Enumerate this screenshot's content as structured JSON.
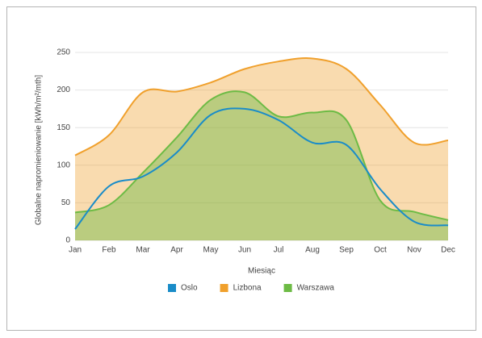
{
  "chart_data": {
    "type": "area",
    "x_label": "Miesiąc",
    "y_label": "Globalne napromieniowanie [kWh/m²/mth]",
    "categories": [
      "Jan",
      "Feb",
      "Mar",
      "Apr",
      "May",
      "Jun",
      "Jul",
      "Aug",
      "Sep",
      "Oct",
      "Nov",
      "Dec"
    ],
    "series": [
      {
        "name": "Oslo",
        "color": "#1a8cc8",
        "values": [
          15,
          72,
          85,
          117,
          167,
          175,
          160,
          130,
          127,
          68,
          25,
          20
        ]
      },
      {
        "name": "Lizbona",
        "color": "#f0a02c",
        "values": [
          113,
          140,
          197,
          198,
          210,
          228,
          238,
          242,
          228,
          180,
          130,
          133
        ]
      },
      {
        "name": "Warszawa",
        "color": "#6dbb45",
        "values": [
          37,
          47,
          90,
          137,
          187,
          197,
          165,
          170,
          160,
          53,
          38,
          27
        ]
      }
    ],
    "ylim": [
      0,
      250
    ],
    "yticks": [
      0,
      50,
      100,
      150,
      200,
      250
    ],
    "grid": true,
    "legend": "bottom"
  }
}
